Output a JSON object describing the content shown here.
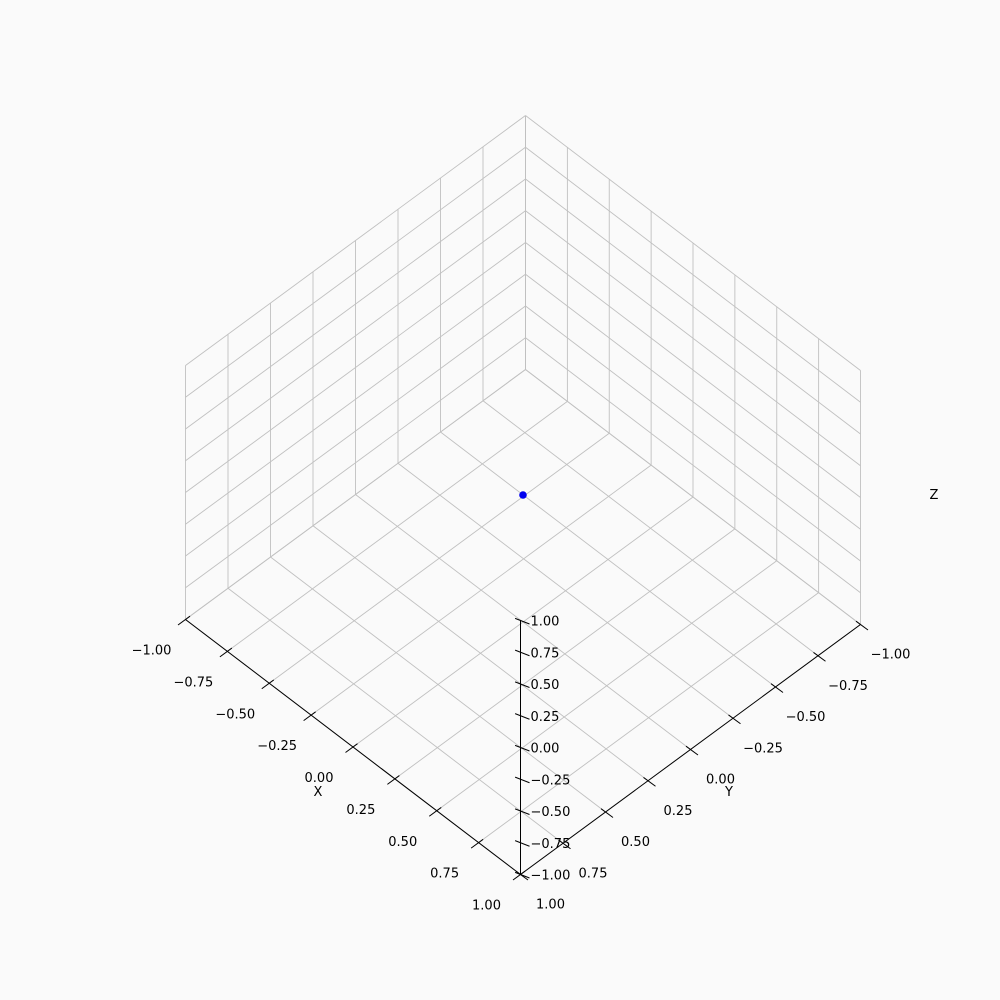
{
  "chart_data": {
    "type": "scatter",
    "projection": "3d",
    "xlabel": "X",
    "ylabel": "Y",
    "zlabel": "Z",
    "xlim": [
      -1.0,
      1.0
    ],
    "ylim": [
      -1.0,
      1.0
    ],
    "zlim": [
      -1.0,
      1.0
    ],
    "ticks": [
      -1.0,
      -0.75,
      -0.5,
      -0.25,
      0.0,
      0.25,
      0.5,
      0.75,
      1.0
    ],
    "tick_labels": [
      "−1.00",
      "−0.75",
      "−0.50",
      "−0.25",
      "0.00",
      "0.25",
      "0.50",
      "0.75",
      "1.00"
    ],
    "grid": true,
    "series": [
      {
        "points": [
          {
            "x": 0.0,
            "y": 0.0,
            "z": 0.0
          }
        ],
        "color": "#0000ee"
      }
    ],
    "colors": {
      "background": "#fafafa",
      "grid": "#c0c0c0",
      "point": "#0000ee"
    }
  }
}
